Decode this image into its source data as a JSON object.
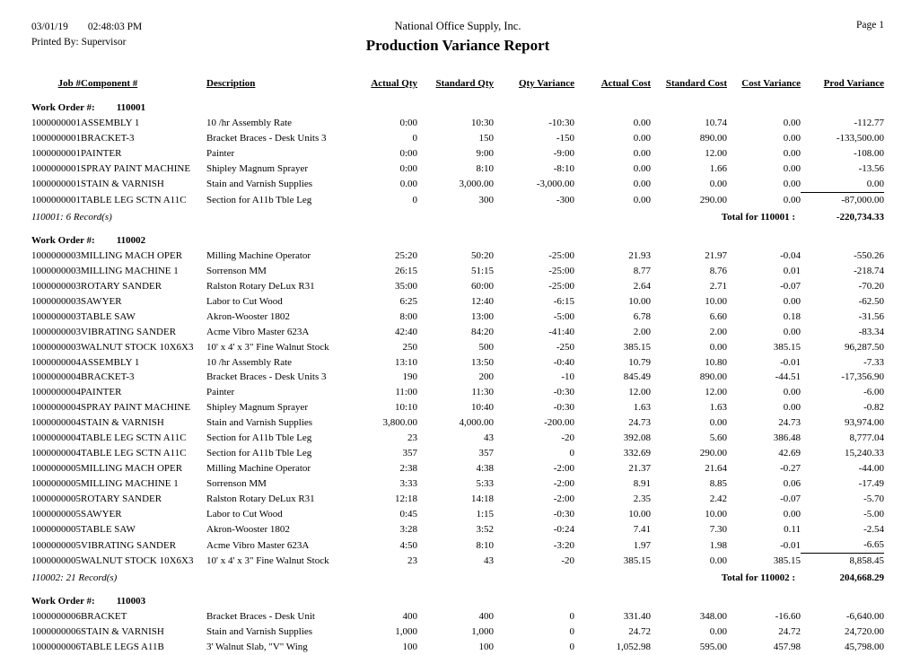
{
  "header": {
    "date": "03/01/19",
    "time": "02:48:03 PM",
    "printed_by": "Printed By: Supervisor",
    "company": "National Office Supply, Inc.",
    "title": "Production Variance Report",
    "page": "Page 1"
  },
  "columns": [
    "Job #",
    "Component #",
    "Description",
    "Actual Qty",
    "Standard Qty",
    "Qty Variance",
    "Actual Cost",
    "Standard Cost",
    "Cost Variance",
    "Prod Variance"
  ],
  "work_orders": [
    {
      "label": "Work Order #:",
      "number": "110001",
      "rows": [
        [
          "1000000001",
          "ASSEMBLY 1",
          "10 /hr Assembly Rate",
          "0:00",
          "10:30",
          "-10:30",
          "0.00",
          "10.74",
          "0.00",
          "-112.77"
        ],
        [
          "1000000001",
          "BRACKET-3",
          "Bracket Braces - Desk Units 3",
          "0",
          "150",
          "-150",
          "0.00",
          "890.00",
          "0.00",
          "-133,500.00"
        ],
        [
          "1000000001",
          "PAINTER",
          "Painter",
          "0:00",
          "9:00",
          "-9:00",
          "0.00",
          "12.00",
          "0.00",
          "-108.00"
        ],
        [
          "1000000001",
          "SPRAY PAINT MACHINE",
          "Shipley Magnum Sprayer",
          "0:00",
          "8:10",
          "-8:10",
          "0.00",
          "1.66",
          "0.00",
          "-13.56"
        ],
        [
          "1000000001",
          "STAIN & VARNISH",
          "Stain and Varnish Supplies",
          "0.00",
          "3,000.00",
          "-3,000.00",
          "0.00",
          "0.00",
          "0.00",
          "0.00"
        ],
        [
          "1000000001",
          "TABLE LEG SCTN A11C",
          "Section for A11b Tble Leg",
          "0",
          "300",
          "-300",
          "0.00",
          "290.00",
          "0.00",
          "-87,000.00"
        ]
      ],
      "records_text": "110001: 6 Record(s)",
      "total_label": "Total for 110001 :",
      "total_value": "-220,734.33"
    },
    {
      "label": "Work Order #:",
      "number": "110002",
      "rows": [
        [
          "1000000003",
          "MILLING MACH OPER",
          "Milling Machine Operator",
          "25:20",
          "50:20",
          "-25:00",
          "21.93",
          "21.97",
          "-0.04",
          "-550.26"
        ],
        [
          "1000000003",
          "MILLING MACHINE 1",
          "Sorrenson MM",
          "26:15",
          "51:15",
          "-25:00",
          "8.77",
          "8.76",
          "0.01",
          "-218.74"
        ],
        [
          "1000000003",
          "ROTARY SANDER",
          "Ralston Rotary DeLux R31",
          "35:00",
          "60:00",
          "-25:00",
          "2.64",
          "2.71",
          "-0.07",
          "-70.20"
        ],
        [
          "1000000003",
          "SAWYER",
          "Labor to Cut Wood",
          "6:25",
          "12:40",
          "-6:15",
          "10.00",
          "10.00",
          "0.00",
          "-62.50"
        ],
        [
          "1000000003",
          "TABLE SAW",
          "Akron-Wooster 1802",
          "8:00",
          "13:00",
          "-5:00",
          "6.78",
          "6.60",
          "0.18",
          "-31.56"
        ],
        [
          "1000000003",
          "VIBRATING SANDER",
          "Acme Vibro Master 623A",
          "42:40",
          "84:20",
          "-41:40",
          "2.00",
          "2.00",
          "0.00",
          "-83.34"
        ],
        [
          "1000000003",
          "WALNUT STOCK 10X6X3",
          "10' x 4' x 3\" Fine Walnut Stock",
          "250",
          "500",
          "-250",
          "385.15",
          "0.00",
          "385.15",
          "96,287.50"
        ],
        [
          "1000000004",
          "ASSEMBLY 1",
          "10 /hr Assembly Rate",
          "13:10",
          "13:50",
          "-0:40",
          "10.79",
          "10.80",
          "-0.01",
          "-7.33"
        ],
        [
          "1000000004",
          "BRACKET-3",
          "Bracket Braces - Desk Units 3",
          "190",
          "200",
          "-10",
          "845.49",
          "890.00",
          "-44.51",
          "-17,356.90"
        ],
        [
          "1000000004",
          "PAINTER",
          "Painter",
          "11:00",
          "11:30",
          "-0:30",
          "12.00",
          "12.00",
          "0.00",
          "-6.00"
        ],
        [
          "1000000004",
          "SPRAY PAINT MACHINE",
          "Shipley Magnum Sprayer",
          "10:10",
          "10:40",
          "-0:30",
          "1.63",
          "1.63",
          "0.00",
          "-0.82"
        ],
        [
          "1000000004",
          "STAIN & VARNISH",
          "Stain and Varnish Supplies",
          "3,800.00",
          "4,000.00",
          "-200.00",
          "24.73",
          "0.00",
          "24.73",
          "93,974.00"
        ],
        [
          "1000000004",
          "TABLE LEG SCTN A11C",
          "Section for A11b Tble Leg",
          "23",
          "43",
          "-20",
          "392.08",
          "5.60",
          "386.48",
          "8,777.04"
        ],
        [
          "1000000004",
          "TABLE LEG SCTN A11C",
          "Section for A11b Tble Leg",
          "357",
          "357",
          "0",
          "332.69",
          "290.00",
          "42.69",
          "15,240.33"
        ],
        [
          "1000000005",
          "MILLING MACH OPER",
          "Milling Machine Operator",
          "2:38",
          "4:38",
          "-2:00",
          "21.37",
          "21.64",
          "-0.27",
          "-44.00"
        ],
        [
          "1000000005",
          "MILLING MACHINE 1",
          "Sorrenson MM",
          "3:33",
          "5:33",
          "-2:00",
          "8.91",
          "8.85",
          "0.06",
          "-17.49"
        ],
        [
          "1000000005",
          "ROTARY SANDER",
          "Ralston Rotary DeLux R31",
          "12:18",
          "14:18",
          "-2:00",
          "2.35",
          "2.42",
          "-0.07",
          "-5.70"
        ],
        [
          "1000000005",
          "SAWYER",
          "Labor to Cut Wood",
          "0:45",
          "1:15",
          "-0:30",
          "10.00",
          "10.00",
          "0.00",
          "-5.00"
        ],
        [
          "1000000005",
          "TABLE SAW",
          "Akron-Wooster 1802",
          "3:28",
          "3:52",
          "-0:24",
          "7.41",
          "7.30",
          "0.11",
          "-2.54"
        ],
        [
          "1000000005",
          "VIBRATING SANDER",
          "Acme Vibro Master 623A",
          "4:50",
          "8:10",
          "-3:20",
          "1.97",
          "1.98",
          "-0.01",
          "-6.65"
        ],
        [
          "1000000005",
          "WALNUT STOCK 10X6X3",
          "10' x 4' x 3\" Fine Walnut Stock",
          "23",
          "43",
          "-20",
          "385.15",
          "0.00",
          "385.15",
          "8,858.45"
        ]
      ],
      "records_text": "110002: 21 Record(s)",
      "total_label": "Total for 110002 :",
      "total_value": "204,668.29"
    },
    {
      "label": "Work Order #:",
      "number": "110003",
      "rows": [
        [
          "1000000006",
          "BRACKET",
          "Bracket Braces - Desk Unit",
          "400",
          "400",
          "0",
          "331.40",
          "348.00",
          "-16.60",
          "-6,640.00"
        ],
        [
          "1000000006",
          "STAIN & VARNISH",
          "Stain and Varnish Supplies",
          "1,000",
          "1,000",
          "0",
          "24.72",
          "0.00",
          "24.72",
          "24,720.00"
        ],
        [
          "1000000006",
          "TABLE LEGS A11B",
          "3' Walnut Slab, \"V\" Wing",
          "100",
          "100",
          "0",
          "1,052.98",
          "595.00",
          "457.98",
          "45,798.00"
        ]
      ]
    }
  ]
}
